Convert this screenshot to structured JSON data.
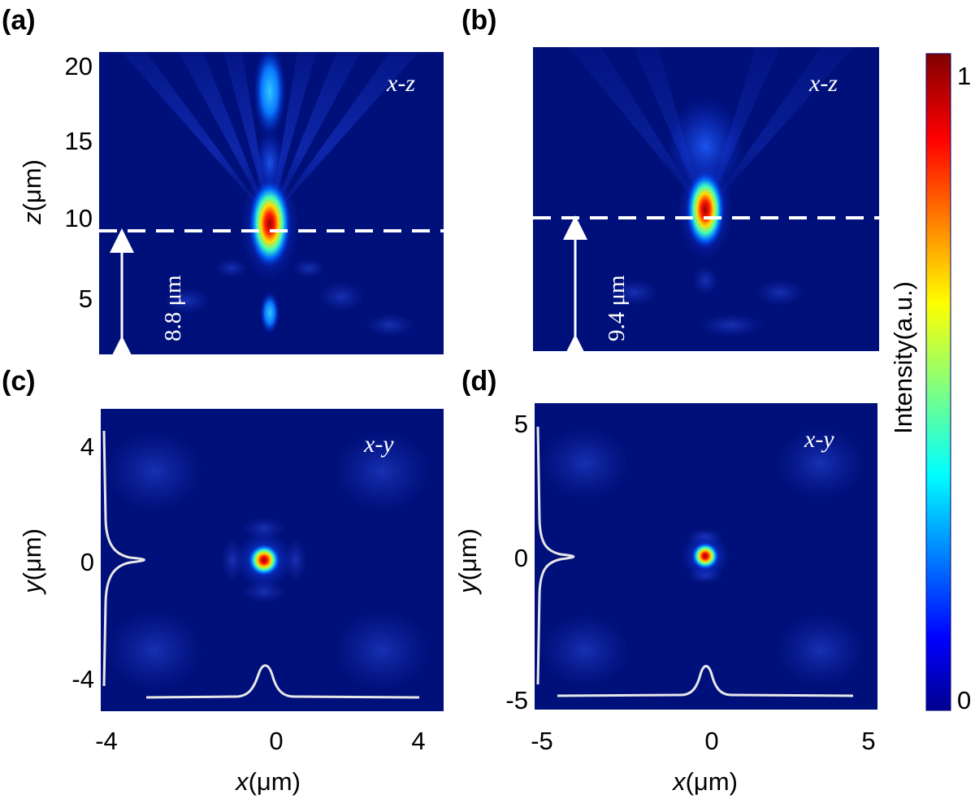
{
  "chart_data": [
    {
      "panel_label": "(a)",
      "type": "heatmap",
      "plane_label": "x-z",
      "ylabel_var": "z",
      "ylabel_unit": "(μm)",
      "yticks": [
        "20",
        "15",
        "10",
        "5"
      ],
      "focus_height_label": "8.8 μm",
      "focus_z": 8.8
    },
    {
      "panel_label": "(b)",
      "type": "heatmap",
      "plane_label": "x-z",
      "focus_height_label": "9.4 μm",
      "focus_z": 9.4
    },
    {
      "panel_label": "(c)",
      "type": "heatmap",
      "plane_label": "x-y",
      "ylabel_var": "y",
      "ylabel_unit": "(μm)",
      "xlabel_var": "x",
      "xlabel_unit": "(μm)",
      "yticks": [
        "4",
        "0",
        "-4"
      ],
      "xticks": [
        "-4",
        "0",
        "4"
      ],
      "xlim": [
        -4.6,
        4.6
      ],
      "ylim": [
        -4.6,
        4.6
      ]
    },
    {
      "panel_label": "(d)",
      "type": "heatmap",
      "plane_label": "x-y",
      "ylabel_var": "y",
      "ylabel_unit": "(μm)",
      "xlabel_var": "x",
      "xlabel_unit": "(μm)",
      "yticks": [
        "5",
        "0",
        "-5"
      ],
      "xticks": [
        "-5",
        "0",
        "5"
      ],
      "xlim": [
        -5.3,
        5.3
      ],
      "ylim": [
        -5.3,
        5.3
      ]
    }
  ],
  "colorbar": {
    "label": "Intensity(a.u.)",
    "max_label": "1",
    "min_label": "0",
    "colormap": "jet"
  },
  "colors": {
    "background_field": "#00107a",
    "focus_hot": "#b00000",
    "overlay": "#ffffff"
  }
}
